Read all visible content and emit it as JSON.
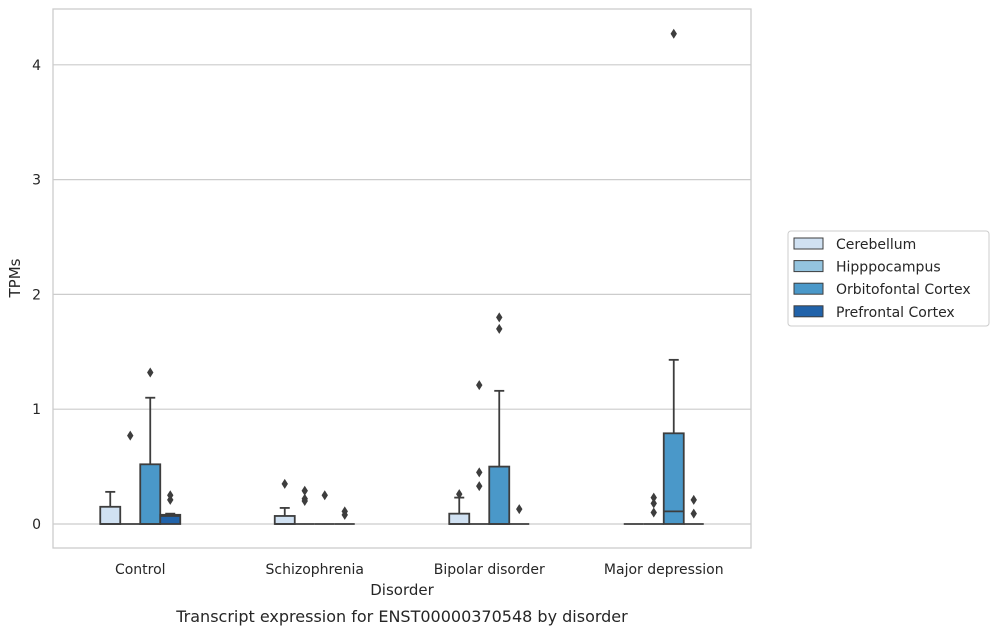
{
  "chart_data": {
    "type": "box",
    "caption": "Transcript expression for ENST00000370548 by disorder",
    "xlabel": "Disorder",
    "ylabel": "TPMs",
    "ylim": [
      -0.2,
      4.5
    ],
    "yticks": [
      0,
      1,
      2,
      3,
      4
    ],
    "grid": "horizontal",
    "legend_position": "right",
    "categories": [
      "Control",
      "Schizophrenia",
      "Bipolar disorder",
      "Major depression"
    ],
    "series": [
      {
        "name": "Cerebellum",
        "color": "#d0e1f2",
        "boxes": [
          {
            "q1": 0,
            "median": 0,
            "q3": 0.15,
            "whisker_low": 0,
            "whisker_high": 0.28,
            "outliers": []
          },
          {
            "q1": 0,
            "median": 0,
            "q3": 0.07,
            "whisker_low": 0,
            "whisker_high": 0.14,
            "outliers": [
              0.35
            ]
          },
          {
            "q1": 0,
            "median": 0,
            "q3": 0.09,
            "whisker_low": 0,
            "whisker_high": 0.23,
            "outliers": [
              0.26
            ]
          },
          {
            "q1": 0,
            "median": 0,
            "q3": 0,
            "whisker_low": 0,
            "whisker_high": 0,
            "outliers": []
          }
        ]
      },
      {
        "name": "Hipppocampus",
        "color": "#94c4df",
        "boxes": [
          {
            "q1": 0,
            "median": 0,
            "q3": 0,
            "whisker_low": 0,
            "whisker_high": 0,
            "outliers": [
              0.77
            ]
          },
          {
            "q1": 0,
            "median": 0,
            "q3": 0,
            "whisker_low": 0,
            "whisker_high": 0,
            "outliers": [
              0.2,
              0.22,
              0.29
            ]
          },
          {
            "q1": 0,
            "median": 0,
            "q3": 0,
            "whisker_low": 0,
            "whisker_high": 0,
            "outliers": [
              0.33,
              0.45,
              1.21
            ]
          },
          {
            "q1": 0,
            "median": 0,
            "q3": 0,
            "whisker_low": 0,
            "whisker_high": 0,
            "outliers": [
              0.1,
              0.18,
              0.23
            ]
          }
        ]
      },
      {
        "name": "Orbitofontal Cortex",
        "color": "#4a98c9",
        "boxes": [
          {
            "q1": 0,
            "median": 0,
            "q3": 0.52,
            "whisker_low": 0,
            "whisker_high": 1.1,
            "outliers": [
              1.32
            ]
          },
          {
            "q1": 0,
            "median": 0,
            "q3": 0,
            "whisker_low": 0,
            "whisker_high": 0,
            "outliers": [
              0.25
            ]
          },
          {
            "q1": 0,
            "median": 0,
            "q3": 0.5,
            "whisker_low": 0,
            "whisker_high": 1.16,
            "outliers": [
              1.7,
              1.8
            ]
          },
          {
            "q1": 0,
            "median": 0.11,
            "q3": 0.79,
            "whisker_low": 0,
            "whisker_high": 1.43,
            "outliers": [
              4.27
            ]
          }
        ]
      },
      {
        "name": "Prefrontal Cortex",
        "color": "#2163aa",
        "boxes": [
          {
            "q1": 0,
            "median": 0.07,
            "q3": 0.08,
            "whisker_low": 0,
            "whisker_high": 0.09,
            "outliers": [
              0.21,
              0.25
            ]
          },
          {
            "q1": 0,
            "median": 0,
            "q3": 0,
            "whisker_low": 0,
            "whisker_high": 0,
            "outliers": [
              0.08,
              0.11
            ]
          },
          {
            "q1": 0,
            "median": 0,
            "q3": 0,
            "whisker_low": 0,
            "whisker_high": 0,
            "outliers": [
              0.13
            ]
          },
          {
            "q1": 0,
            "median": 0,
            "q3": 0,
            "whisker_low": 0,
            "whisker_high": 0,
            "outliers": [
              0.09,
              0.21
            ]
          }
        ]
      }
    ]
  }
}
